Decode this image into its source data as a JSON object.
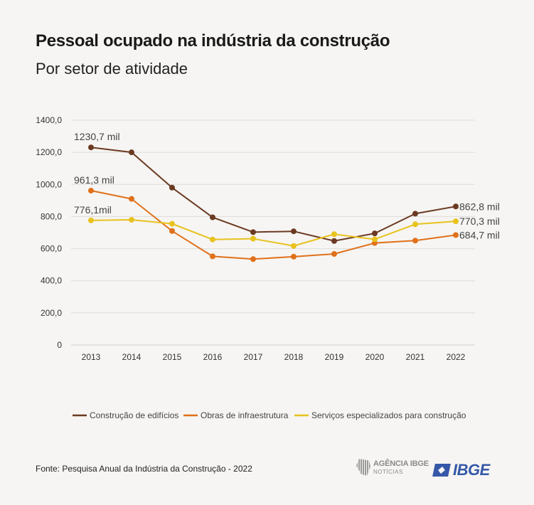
{
  "header": {
    "title": "Pessoal ocupado na indústria da construção",
    "subtitle": "Por setor de atividade"
  },
  "chart_data": {
    "type": "line",
    "x": [
      "2013",
      "2014",
      "2015",
      "2016",
      "2017",
      "2018",
      "2019",
      "2020",
      "2021",
      "2022"
    ],
    "y_ticks": [
      "0",
      "200,0",
      "400,0",
      "600,0",
      "800,0",
      "1000,0",
      "1200,0",
      "1400,0"
    ],
    "ylim": [
      0,
      1400
    ],
    "grid": true,
    "legend_position": "bottom",
    "series": [
      {
        "name": "Construção de edifícios",
        "color": "#6b3a22",
        "values": [
          1230.7,
          1200,
          980,
          795,
          703,
          708,
          648,
          695,
          818,
          862.8
        ],
        "labels": [
          {
            "index": 0,
            "text": "1230,7 mil"
          },
          {
            "index": 9,
            "text": "862,8 mil"
          }
        ]
      },
      {
        "name": "Obras de infraestrutura",
        "color": "#e0701a",
        "values": [
          961.3,
          910,
          710,
          552,
          535,
          550,
          567,
          635,
          650,
          684.7
        ],
        "labels": [
          {
            "index": 0,
            "text": "961,3 mil"
          },
          {
            "index": 9,
            "text": "684,7 mil"
          }
        ]
      },
      {
        "name": "Serviços especializados para construção",
        "color": "#e8c21e",
        "values": [
          776.1,
          780,
          755,
          657,
          662,
          617,
          690,
          658,
          752,
          770.3
        ],
        "labels": [
          {
            "index": 0,
            "text": "776,1mil"
          },
          {
            "index": 9,
            "text": "770,3 mil"
          }
        ]
      }
    ]
  },
  "footer": {
    "source": "Fonte: Pesquisa Anual da Indústria da Construção - 2022",
    "agencia_logo_text": "AGÊNCIA IBGE",
    "agencia_logo_sub": "NOTÍCIAS",
    "ibge_logo_text": "IBGE"
  }
}
